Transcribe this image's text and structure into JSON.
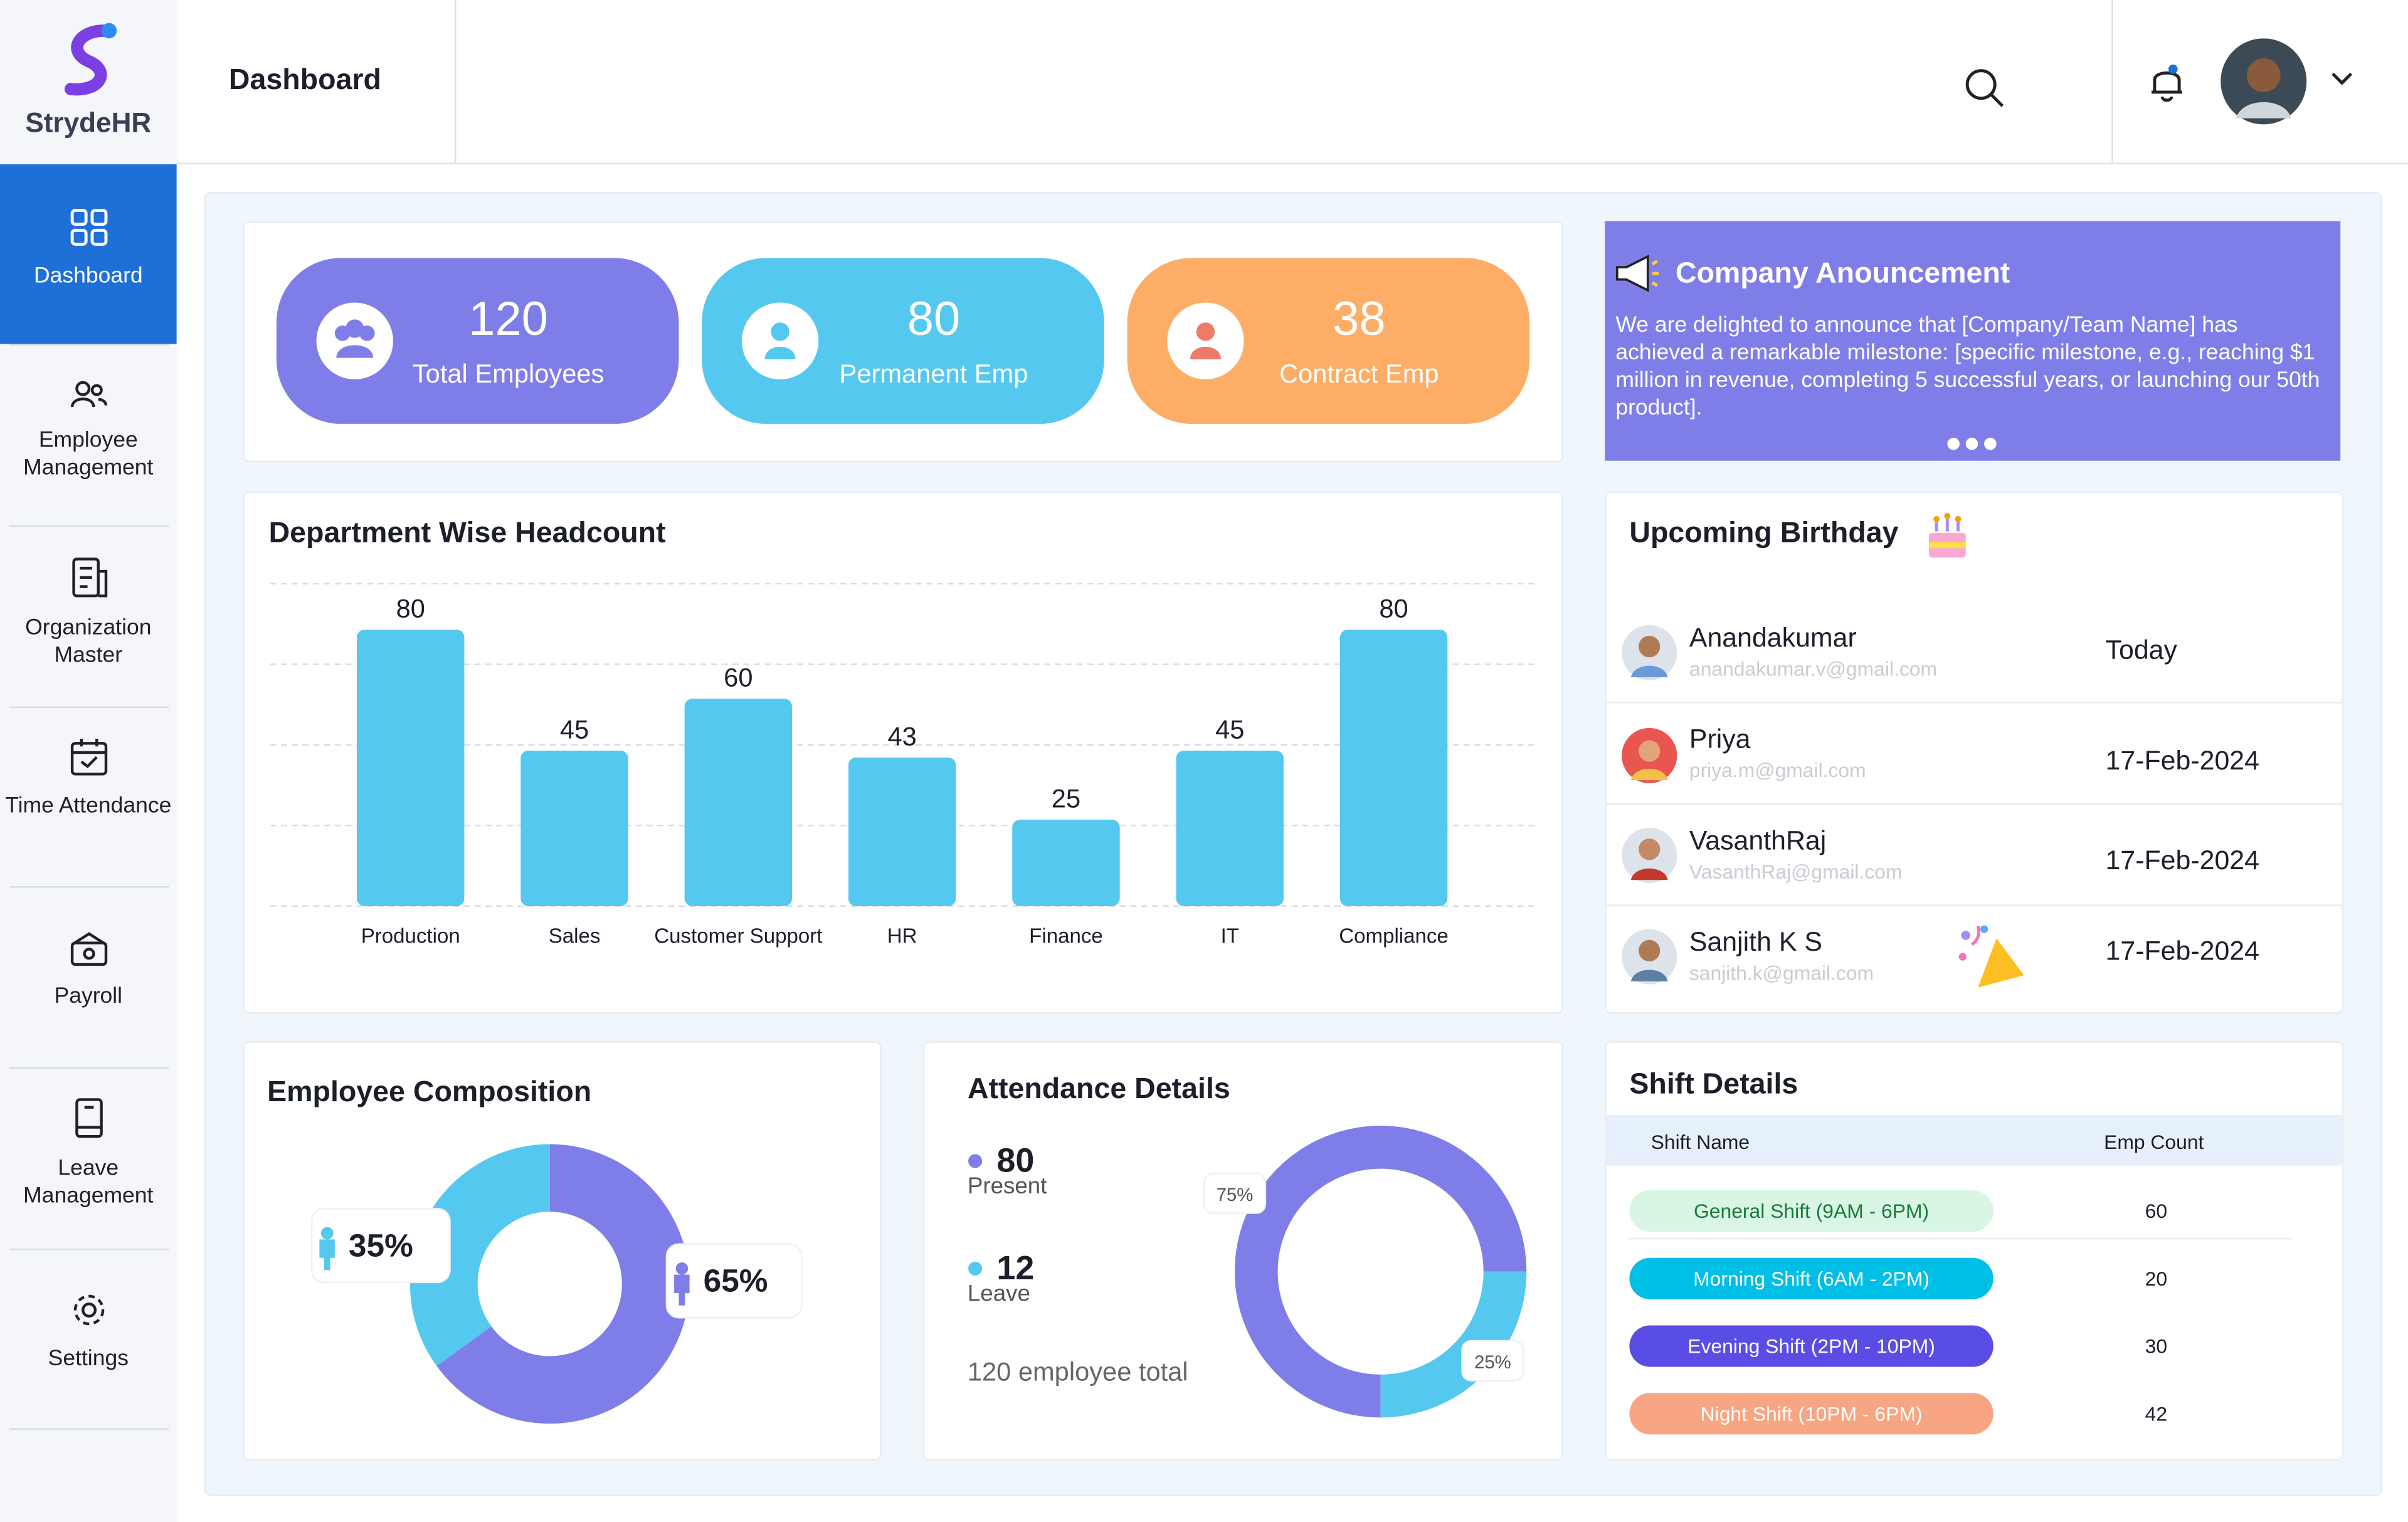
{
  "sidebar": {
    "brand": "StrydeHR",
    "items": [
      "Dashboard",
      "Employee Management",
      "Organization Master",
      "Time Attendance",
      "Payroll",
      "Leave Management",
      "Settings"
    ]
  },
  "header": {
    "title": "Dashboard"
  },
  "stats": [
    {
      "value": 120,
      "label": "Total Employees"
    },
    {
      "value": 80,
      "label": "Permanent Emp"
    },
    {
      "value": 38,
      "label": "Contract Emp"
    }
  ],
  "announcement": {
    "title": "Company Anouncement",
    "text": "We are delighted to announce that [Company/Team Name] has achieved a remarkable milestone: [specific milestone, e.g., reaching $1 million in revenue, completing 5 successful years, or launching our 50th product]."
  },
  "birthdays": {
    "title": "Upcoming Birthday",
    "people": [
      {
        "name": "Anandakumar",
        "email": "anandakumar.v@gmail.com",
        "date": "Today"
      },
      {
        "name": "Priya",
        "email": "priya.m@gmail.com",
        "date": "17-Feb-2024"
      },
      {
        "name": "VasanthRaj",
        "email": "VasanthRaj@gmail.com",
        "date": "17-Feb-2024"
      },
      {
        "name": "Sanjith K S",
        "email": "sanjith.k@gmail.com",
        "date": "17-Feb-2024"
      }
    ]
  },
  "shifts": {
    "title": "Shift Details",
    "columns": [
      "Shift Name",
      "Emp Count"
    ],
    "rows": [
      [
        "General Shift (9AM - 6PM)",
        60
      ],
      [
        "Morning Shift (6AM - 2PM)",
        20
      ],
      [
        "Evening Shift (2PM - 10PM)",
        30
      ],
      [
        "Night Shift (10PM - 6PM)",
        42
      ]
    ]
  },
  "chart_data": [
    {
      "type": "bar",
      "title": "Department Wise Headcount",
      "categories": [
        "Production",
        "Sales",
        "Customer Support",
        "HR",
        "Finance",
        "IT",
        "Compliance"
      ],
      "values": [
        80,
        45,
        60,
        43,
        25,
        45,
        80
      ],
      "color": "#55c8ef",
      "grid": true
    },
    {
      "type": "donut",
      "title": "Employee Composition",
      "values": [
        35,
        65
      ],
      "value_labels": [
        "35%",
        "65%"
      ],
      "colors": [
        "#55c8ef",
        "#7f7ee8"
      ]
    },
    {
      "type": "donut",
      "title": "Attendance Details",
      "values": [
        75,
        25
      ],
      "value_labels": [
        "75%",
        "25%"
      ],
      "colors": [
        "#7f7ee8",
        "#55c8ef"
      ],
      "stats": [
        {
          "value": 80,
          "label": "Present",
          "color": "#7f7ee8"
        },
        {
          "value": 12,
          "label": "Leave",
          "color": "#55c8ef"
        }
      ],
      "total_label": "120 employee total"
    }
  ]
}
